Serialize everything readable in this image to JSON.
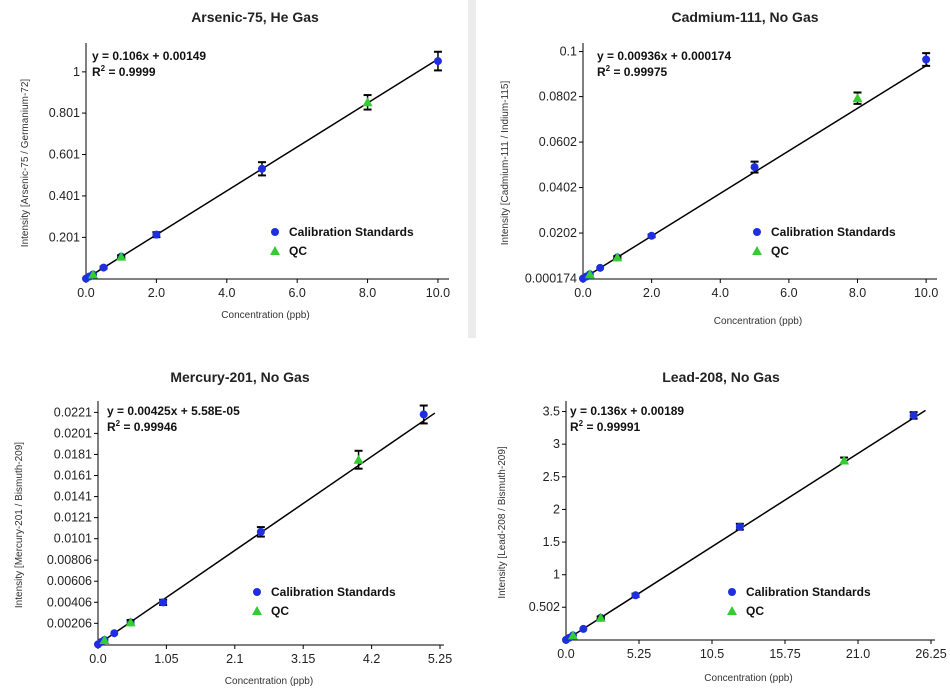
{
  "charts": [
    {
      "chart_data": {
        "type": "scatter",
        "title": "Arsenic-75, He Gas",
        "xlabel": "Concentration (ppb)",
        "ylabel": "Intensity [Arsenic-75 / Germanium-72]",
        "xlim": [
          0,
          10.2
        ],
        "ylim": [
          0,
          1.12
        ],
        "xticks": [
          0,
          2,
          4,
          6,
          8,
          10
        ],
        "xtick_labels": [
          "0.0",
          "2.0",
          "4.0",
          "6.0",
          "8.0",
          "10.0"
        ],
        "yticks": [
          0.201,
          0.401,
          0.601,
          0.801,
          1
        ],
        "ytick_labels": [
          "0.201",
          "0.401",
          "0.601",
          "0.801",
          "1"
        ],
        "equation": "y = 0.106x + 0.00149",
        "r2_label": "R",
        "r2_sup": "2",
        "r2_value": " = 0.9999",
        "fit": {
          "slope": 0.106,
          "intercept": 0.00149
        },
        "legend_position": "right",
        "series": [
          {
            "name": "Calibration Standards",
            "marker": "circle",
            "color": "#1f2fe0",
            "x": [
              0,
              0.1,
              0.2,
              0.5,
              1,
              2,
              5,
              10
            ],
            "y": [
              0.002,
              0.012,
              0.022,
              0.055,
              0.108,
              0.214,
              0.532,
              1.052
            ],
            "err": [
              0,
              0,
              0,
              0.005,
              0.006,
              0.012,
              0.032,
              0.045
            ]
          },
          {
            "name": "QC",
            "marker": "triangle",
            "color": "#33cc33",
            "x": [
              0.2,
              1,
              8
            ],
            "y": [
              0.022,
              0.108,
              0.853
            ],
            "err": [
              0,
              0.006,
              0.035
            ]
          }
        ]
      }
    },
    {
      "chart_data": {
        "type": "scatter",
        "title": "Cadmium-111, No Gas",
        "xlabel": "Concentration (ppb)",
        "ylabel": "Intensity [Cadmium-111 / Indium-115]",
        "xlim": [
          0,
          10.2
        ],
        "ylim": [
          0,
          0.102
        ],
        "xticks": [
          0,
          2,
          4,
          6,
          8,
          10
        ],
        "xtick_labels": [
          "0.0",
          "2.0",
          "4.0",
          "6.0",
          "8.0",
          "10.0"
        ],
        "yticks": [
          0.000174,
          0.0202,
          0.0402,
          0.0602,
          0.0802,
          0.1
        ],
        "ytick_labels": [
          "0.000174",
          "0.0202",
          "0.0402",
          "0.0602",
          "0.0802",
          "0.1"
        ],
        "equation": "y = 0.00936x + 0.000174",
        "r2_label": "R",
        "r2_sup": "2",
        "r2_value": " = 0.99975",
        "fit": {
          "slope": 0.00936,
          "intercept": 0.000174
        },
        "legend_position": "right",
        "series": [
          {
            "name": "Calibration Standards",
            "marker": "circle",
            "color": "#1f2fe0",
            "x": [
              0,
              0.1,
              0.2,
              0.5,
              1,
              2,
              5,
              10
            ],
            "y": [
              0.0002,
              0.0011,
              0.0021,
              0.0049,
              0.0095,
              0.019,
              0.0492,
              0.0965
            ],
            "err": [
              0,
              0,
              0,
              0,
              0.0005,
              0.0006,
              0.0024,
              0.0028
            ]
          },
          {
            "name": "QC",
            "marker": "triangle",
            "color": "#33cc33",
            "x": [
              0.2,
              1,
              8
            ],
            "y": [
              0.0021,
              0.0095,
              0.0795
            ],
            "err": [
              0,
              0.0005,
              0.0025
            ]
          }
        ]
      }
    },
    {
      "chart_data": {
        "type": "scatter",
        "title": "Mercury-201, No Gas",
        "xlabel": "Concentration (ppb)",
        "ylabel": "Intensity [Mercury-201 / Bismuth-209]",
        "xlim": [
          0,
          5.25
        ],
        "ylim": [
          0,
          0.0228
        ],
        "xticks": [
          0,
          1.05,
          2.1,
          3.15,
          4.2,
          5.25
        ],
        "xtick_labels": [
          "0.0",
          "1.05",
          "2.1",
          "3.15",
          "4.2",
          "5.25"
        ],
        "yticks": [
          0.00206,
          0.00406,
          0.00606,
          0.00806,
          0.0101,
          0.0121,
          0.0141,
          0.0161,
          0.0181,
          0.0201,
          0.0221
        ],
        "ytick_labels": [
          "0.00206",
          "0.00406",
          "0.00606",
          "0.00806",
          "0.0101",
          "0.0121",
          "0.0141",
          "0.0161",
          "0.0181",
          "0.0201",
          "0.0221"
        ],
        "equation": "y = 0.00425x + 5.58E-05",
        "r2_label": "R",
        "r2_sup": "2",
        "r2_value": " = 0.99946",
        "fit": {
          "slope": 0.00425,
          "intercept": 5.58e-05
        },
        "legend_position": "right",
        "series": [
          {
            "name": "Calibration Standards",
            "marker": "circle",
            "color": "#1f2fe0",
            "x": [
              0,
              0.05,
              0.1,
              0.25,
              0.5,
              1,
              2.5,
              5
            ],
            "y": [
              6e-05,
              0.00028,
              0.00048,
              0.00112,
              0.00215,
              0.00405,
              0.01075,
              0.0219
            ],
            "err": [
              0,
              0,
              0,
              0,
              0,
              0.00025,
              0.00045,
              0.00085
            ]
          },
          {
            "name": "QC",
            "marker": "triangle",
            "color": "#33cc33",
            "x": [
              0.1,
              0.5,
              4
            ],
            "y": [
              0.00048,
              0.00215,
              0.0176
            ],
            "err": [
              0,
              0.00022,
              0.00085
            ]
          }
        ]
      }
    },
    {
      "chart_data": {
        "type": "scatter",
        "title": "Lead-208, No Gas",
        "xlabel": "Concentration (ppb)",
        "ylabel": "Intensity [Lead-208 / Bismuth-209]",
        "xlim": [
          0,
          26.25
        ],
        "ylim": [
          0,
          3.6
        ],
        "xticks": [
          0,
          5.25,
          10.5,
          15.75,
          21,
          26.25
        ],
        "xtick_labels": [
          "0.0",
          "5.25",
          "10.5",
          "15.75",
          "21.0",
          "26.25"
        ],
        "yticks": [
          0.502,
          1,
          1.5,
          2,
          2.5,
          3,
          3.5
        ],
        "ytick_labels": [
          "0.502",
          "1",
          "1.5",
          "2",
          "2.5",
          "3",
          "3.5"
        ],
        "equation": "y = 0.136x + 0.00189",
        "r2_label": "R",
        "r2_sup": "2",
        "r2_value": " = 0.99991",
        "fit": {
          "slope": 0.136,
          "intercept": 0.00189
        },
        "legend_position": "right",
        "series": [
          {
            "name": "Calibration Standards",
            "marker": "circle",
            "color": "#1f2fe0",
            "x": [
              0,
              0.25,
              0.5,
              1.25,
              2.5,
              5,
              12.5,
              25
            ],
            "y": [
              0.002,
              0.035,
              0.07,
              0.17,
              0.34,
              0.685,
              1.735,
              3.44
            ],
            "err": [
              0,
              0,
              0,
              0,
              0.02,
              0.025,
              0.045,
              0.05
            ]
          },
          {
            "name": "QC",
            "marker": "triangle",
            "color": "#33cc33",
            "x": [
              0.5,
              2.5,
              20
            ],
            "y": [
              0.07,
              0.34,
              2.75
            ],
            "err": [
              0,
              0.02,
              0.045
            ]
          }
        ]
      }
    }
  ]
}
